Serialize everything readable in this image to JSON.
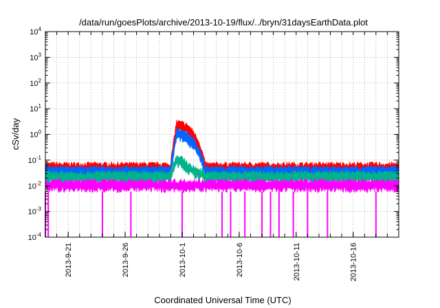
{
  "chart_data": {
    "type": "line",
    "title": "/data/run/goesPlots/archive/2013-10-19/flux/../bryn/31daysEarthData.plot",
    "xlabel": "Coordinated Universal Time (UTC)",
    "ylabel": "cSv/day",
    "yscale": "log",
    "ylim": [
      0.0001,
      10000
    ],
    "xlim": [
      "2013-09-19",
      "2013-10-20"
    ],
    "grid": true,
    "x_ticks": [
      "2013-9-21",
      "2013-9-26",
      "2013-10-1",
      "2013-10-6",
      "2013-10-11",
      "2013-10-16"
    ],
    "y_ticks": [
      {
        "base": "10",
        "exp": "-4"
      },
      {
        "base": "10",
        "exp": "-3"
      },
      {
        "base": "10",
        "exp": "-2"
      },
      {
        "base": "10",
        "exp": "-1"
      },
      {
        "base": "10",
        "exp": "0"
      },
      {
        "base": "10",
        "exp": "1"
      },
      {
        "base": "10",
        "exp": "2"
      },
      {
        "base": "10",
        "exp": "3"
      },
      {
        "base": "10",
        "exp": "4"
      }
    ],
    "series": [
      {
        "color": "#ff0000",
        "baseline": 0.055,
        "points": [
          {
            "x": "2013-09-30",
            "y": 0.07
          },
          {
            "x": "2013-09-30T12:00",
            "y": 2.5
          },
          {
            "x": "2013-10-01",
            "y": 2.2
          },
          {
            "x": "2013-10-01T12:00",
            "y": 1.8
          },
          {
            "x": "2013-10-02",
            "y": 1.0
          },
          {
            "x": "2013-10-02T12:00",
            "y": 0.4
          },
          {
            "x": "2013-10-03",
            "y": 0.07
          }
        ]
      },
      {
        "color": "#0066ff",
        "baseline": 0.04,
        "points": [
          {
            "x": "2013-09-30",
            "y": 0.05
          },
          {
            "x": "2013-09-30T12:00",
            "y": 1.2
          },
          {
            "x": "2013-10-01",
            "y": 1.0
          },
          {
            "x": "2013-10-01T12:00",
            "y": 0.8
          },
          {
            "x": "2013-10-02",
            "y": 0.5
          },
          {
            "x": "2013-10-02T12:00",
            "y": 0.2
          },
          {
            "x": "2013-10-03",
            "y": 0.05
          }
        ]
      },
      {
        "color": "#00b38a",
        "baseline": 0.025,
        "points": [
          {
            "x": "2013-09-30",
            "y": 0.03
          },
          {
            "x": "2013-09-30T12:00",
            "y": 0.12
          },
          {
            "x": "2013-10-01",
            "y": 0.09
          },
          {
            "x": "2013-10-01T12:00",
            "y": 0.06
          },
          {
            "x": "2013-10-02",
            "y": 0.04
          },
          {
            "x": "2013-10-03",
            "y": 0.03
          }
        ]
      },
      {
        "color": "#ff00ff",
        "baseline": 0.012,
        "dropouts": [
          {
            "x": "2013-09-19",
            "y": 0.0001
          },
          {
            "x": "2013-09-19T06:00",
            "y": 0.0001
          },
          {
            "x": "2013-09-24",
            "y": 0.0001
          },
          {
            "x": "2013-09-26T12:00",
            "y": 0.0001
          },
          {
            "x": "2013-10-01",
            "y": 0.0001
          },
          {
            "x": "2013-10-04T12:00",
            "y": 0.0001
          },
          {
            "x": "2013-10-05T06:00",
            "y": 0.0001
          },
          {
            "x": "2013-10-06T12:00",
            "y": 0.0001
          },
          {
            "x": "2013-10-08",
            "y": 0.0001
          },
          {
            "x": "2013-10-08T18:00",
            "y": 0.0001
          },
          {
            "x": "2013-10-09T12:00",
            "y": 0.0001
          },
          {
            "x": "2013-10-10T18:00",
            "y": 0.0001
          },
          {
            "x": "2013-10-12",
            "y": 0.0001
          },
          {
            "x": "2013-10-13T18:00",
            "y": 0.0001
          },
          {
            "x": "2013-10-18",
            "y": 0.0001
          }
        ]
      }
    ]
  }
}
